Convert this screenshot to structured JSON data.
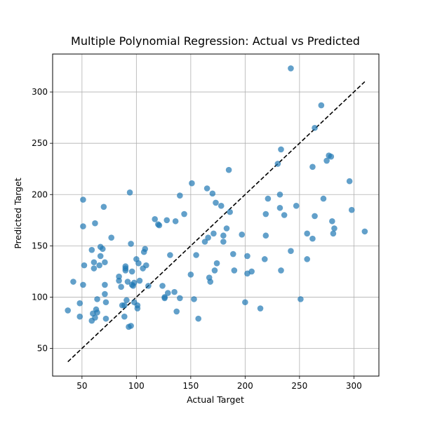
{
  "chart_data": {
    "type": "scatter",
    "title": "Multiple Polynomial Regression: Actual vs Predicted",
    "xlabel": "Actual Target",
    "ylabel": "Predicted Target",
    "xlim": [
      23,
      323
    ],
    "ylim": [
      23,
      337
    ],
    "xticks": [
      50,
      100,
      150,
      200,
      250,
      300
    ],
    "yticks": [
      50,
      100,
      150,
      200,
      250,
      300
    ],
    "grid": true,
    "point_color": "#1f77b4",
    "reference_line": {
      "style": "dashed",
      "color": "#000000",
      "x": [
        37,
        310
      ],
      "y": [
        37,
        310
      ]
    },
    "series": [
      {
        "points": [
          [
            37,
            87
          ],
          [
            42,
            115
          ],
          [
            48,
            94
          ],
          [
            48,
            81
          ],
          [
            51,
            195
          ],
          [
            51,
            169
          ],
          [
            51,
            112
          ],
          [
            52,
            131
          ],
          [
            59,
            77
          ],
          [
            59,
            146
          ],
          [
            60,
            84
          ],
          [
            61,
            128
          ],
          [
            61,
            134
          ],
          [
            62,
            80
          ],
          [
            62,
            172
          ],
          [
            63,
            88
          ],
          [
            64,
            98
          ],
          [
            64,
            85
          ],
          [
            66,
            131
          ],
          [
            67,
            149
          ],
          [
            67,
            140
          ],
          [
            69,
            147
          ],
          [
            70,
            188
          ],
          [
            71,
            134
          ],
          [
            71,
            112
          ],
          [
            71,
            103
          ],
          [
            72,
            95
          ],
          [
            72,
            79
          ],
          [
            77,
            158
          ],
          [
            84,
            120
          ],
          [
            84,
            116
          ],
          [
            86,
            110
          ],
          [
            87,
            92
          ],
          [
            89,
            92
          ],
          [
            89,
            81
          ],
          [
            90,
            130
          ],
          [
            90,
            126
          ],
          [
            90,
            128
          ],
          [
            91,
            97
          ],
          [
            92,
            115
          ],
          [
            93,
            71
          ],
          [
            94,
            202
          ],
          [
            95,
            72
          ],
          [
            95,
            152
          ],
          [
            96,
            112
          ],
          [
            96,
            125
          ],
          [
            97,
            111
          ],
          [
            98,
            95
          ],
          [
            98,
            114
          ],
          [
            100,
            137
          ],
          [
            101,
            92
          ],
          [
            101,
            89
          ],
          [
            102,
            133
          ],
          [
            103,
            116
          ],
          [
            106,
            128
          ],
          [
            107,
            144
          ],
          [
            108,
            147
          ],
          [
            109,
            131
          ],
          [
            111,
            111
          ],
          [
            117,
            176
          ],
          [
            120,
            171
          ],
          [
            121,
            170
          ],
          [
            124,
            111
          ],
          [
            126,
            99
          ],
          [
            126,
            100
          ],
          [
            128,
            175
          ],
          [
            129,
            104
          ],
          [
            131,
            141
          ],
          [
            135,
            105
          ],
          [
            136,
            174
          ],
          [
            137,
            86
          ],
          [
            140,
            199
          ],
          [
            140,
            99
          ],
          [
            144,
            181
          ],
          [
            150,
            122
          ],
          [
            151,
            211
          ],
          [
            153,
            98
          ],
          [
            155,
            141
          ],
          [
            157,
            79
          ],
          [
            163,
            154
          ],
          [
            165,
            206
          ],
          [
            166,
            158
          ],
          [
            167,
            119
          ],
          [
            168,
            115
          ],
          [
            170,
            201
          ],
          [
            171,
            162
          ],
          [
            172,
            126
          ],
          [
            173,
            192
          ],
          [
            174,
            133
          ],
          [
            178,
            189
          ],
          [
            180,
            160
          ],
          [
            180,
            154
          ],
          [
            183,
            167
          ],
          [
            185,
            224
          ],
          [
            186,
            183
          ],
          [
            189,
            142
          ],
          [
            190,
            126
          ],
          [
            197,
            161
          ],
          [
            200,
            95
          ],
          [
            202,
            140
          ],
          [
            202,
            123
          ],
          [
            206,
            125
          ],
          [
            214,
            89
          ],
          [
            218,
            137
          ],
          [
            219,
            181
          ],
          [
            219,
            160
          ],
          [
            221,
            196
          ],
          [
            230,
            230
          ],
          [
            232,
            200
          ],
          [
            232,
            187
          ],
          [
            233,
            126
          ],
          [
            233,
            244
          ],
          [
            236,
            180
          ],
          [
            242,
            323
          ],
          [
            242,
            145
          ],
          [
            247,
            189
          ],
          [
            251,
            98
          ],
          [
            257,
            162
          ],
          [
            257,
            137
          ],
          [
            262,
            227
          ],
          [
            262,
            157
          ],
          [
            264,
            265
          ],
          [
            264,
            179
          ],
          [
            270,
            287
          ],
          [
            272,
            196
          ],
          [
            275,
            233
          ],
          [
            277,
            238
          ],
          [
            279,
            237
          ],
          [
            280,
            174
          ],
          [
            281,
            162
          ],
          [
            282,
            167
          ],
          [
            296,
            213
          ],
          [
            298,
            185
          ],
          [
            310,
            164
          ]
        ]
      }
    ]
  }
}
